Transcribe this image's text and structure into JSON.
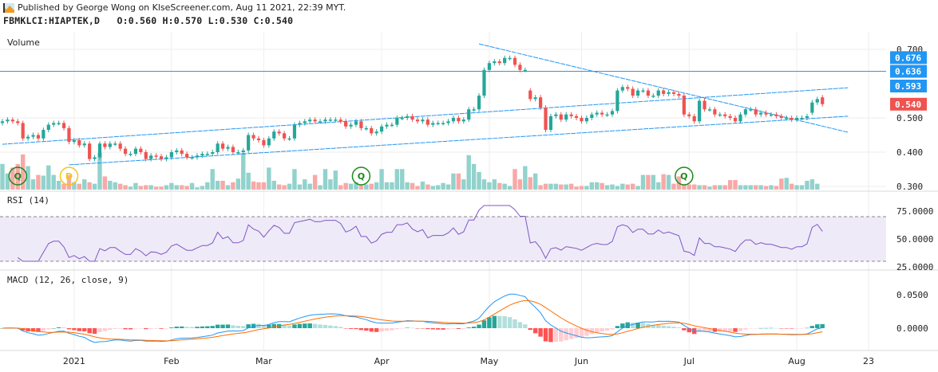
{
  "header": {
    "published": "Published by George Wong on KlseScreener.com, Aug 11 2021, 22:39 MYT.",
    "symbol_line": "FBMKLCI:HIAPTEK,D   O:0.560 H:0.570 L:0.530 C:0.540"
  },
  "colors": {
    "up": "#26a69a",
    "down": "#ef5350",
    "line": "#2196f3",
    "rsi": "#7e57c2",
    "signal": "#ff6d00",
    "event_q": "#1b8a1b",
    "event_d": "#f5c518"
  },
  "panes": {
    "volume_label": "Volume",
    "rsi_label": "RSI (14)",
    "macd_label": "MACD (12, 26, close, 9)"
  },
  "price_axis": {
    "ticks": [
      "0.700",
      "0.500",
      "0.400",
      "0.300"
    ],
    "tick_values": [
      0.7,
      0.5,
      0.4,
      0.3
    ],
    "badges": [
      {
        "text": "0.676",
        "value": 0.676,
        "color": "#2196f3"
      },
      {
        "text": "0.636",
        "value": 0.636,
        "color": "#2196f3"
      },
      {
        "text": "0.593",
        "value": 0.593,
        "color": "#2196f3"
      },
      {
        "text": "0.540",
        "value": 0.54,
        "color": "#ef5350"
      }
    ]
  },
  "rsi_axis": {
    "ticks": [
      "75.0000",
      "50.0000",
      "25.0000"
    ],
    "tick_values": [
      75,
      50,
      25
    ],
    "band": [
      30,
      70
    ]
  },
  "macd_axis": {
    "ticks": [
      "0.0500",
      "0.0000"
    ],
    "tick_values": [
      0.05,
      0
    ]
  },
  "time_axis": {
    "labels": [
      "2021",
      "Feb",
      "Mar",
      "Apr",
      "May",
      "Jun",
      "Jul",
      "Aug",
      "23"
    ],
    "bar_index": [
      14,
      33,
      51,
      74,
      95,
      113,
      134,
      155,
      169
    ]
  },
  "events": [
    {
      "label": "Q",
      "bar_index": 3,
      "type": "q"
    },
    {
      "label": "D",
      "bar_index": 13,
      "type": "d"
    },
    {
      "label": "Q",
      "bar_index": 70,
      "type": "q"
    },
    {
      "label": "Q",
      "bar_index": 133,
      "type": "q"
    }
  ],
  "drawings": {
    "horizontal_level": 0.636,
    "trendlines": [
      {
        "from": [
          0,
          0.423
        ],
        "to": [
          165,
          0.588
        ]
      },
      {
        "from": [
          13,
          0.363
        ],
        "to": [
          165,
          0.505
        ]
      },
      {
        "from": [
          93,
          0.716
        ],
        "to": [
          165,
          0.458
        ]
      }
    ]
  },
  "chart_data": {
    "type": "candlestick",
    "symbol": "FBMKLCI:HIAPTEK,D",
    "indicators": [
      "Volume",
      "RSI (14)",
      "MACD (12, 26, close, 9)"
    ],
    "open": [
      0.485,
      0.49,
      0.495,
      0.49,
      0.485,
      0.44,
      0.445,
      0.45,
      0.44,
      0.465,
      0.48,
      0.485,
      0.485,
      0.47,
      0.43,
      0.435,
      0.42,
      0.425,
      0.38,
      0.385,
      0.425,
      0.415,
      0.425,
      0.425,
      0.41,
      0.395,
      0.395,
      0.41,
      0.4,
      0.38,
      0.39,
      0.388,
      0.38,
      0.385,
      0.4,
      0.405,
      0.395,
      0.385,
      0.385,
      0.39,
      0.395,
      0.395,
      0.4,
      0.425,
      0.41,
      0.415,
      0.4,
      0.4,
      0.405,
      0.45,
      0.44,
      0.435,
      0.42,
      0.44,
      0.46,
      0.455,
      0.44,
      0.44,
      0.48,
      0.485,
      0.49,
      0.495,
      0.49,
      0.49,
      0.495,
      0.495,
      0.495,
      0.49,
      0.475,
      0.48,
      0.49,
      0.47,
      0.47,
      0.455,
      0.46,
      0.475,
      0.48,
      0.48,
      0.5,
      0.5,
      0.505,
      0.495,
      0.49,
      0.495,
      0.48,
      0.485,
      0.485,
      0.485,
      0.49,
      0.5,
      0.49,
      0.495,
      0.525,
      0.525,
      0.565,
      0.64,
      0.66,
      0.665,
      0.66,
      0.675,
      0.675,
      0.655,
      0.64,
      0.58,
      0.555,
      0.56,
      0.53,
      0.465,
      0.505,
      0.51,
      0.495,
      0.51,
      0.505,
      0.5,
      0.49,
      0.5,
      0.51,
      0.515,
      0.51,
      0.51,
      0.52,
      0.58,
      0.59,
      0.585,
      0.565,
      0.58,
      0.58,
      0.565,
      0.565,
      0.58,
      0.57,
      0.575,
      0.57,
      0.565,
      0.51,
      0.505,
      0.49,
      0.55,
      0.525,
      0.525,
      0.51,
      0.51,
      0.505,
      0.5,
      0.49,
      0.51,
      0.525,
      0.525,
      0.51,
      0.515,
      0.51,
      0.51,
      0.505,
      0.5,
      0.5,
      0.495,
      0.5,
      0.5,
      0.515,
      0.545,
      0.56
    ],
    "close": [
      0.49,
      0.495,
      0.49,
      0.485,
      0.44,
      0.445,
      0.45,
      0.44,
      0.465,
      0.48,
      0.485,
      0.485,
      0.47,
      0.43,
      0.435,
      0.42,
      0.425,
      0.38,
      0.385,
      0.425,
      0.415,
      0.425,
      0.425,
      0.41,
      0.395,
      0.395,
      0.41,
      0.4,
      0.38,
      0.39,
      0.388,
      0.38,
      0.385,
      0.4,
      0.405,
      0.395,
      0.385,
      0.385,
      0.39,
      0.395,
      0.395,
      0.4,
      0.425,
      0.41,
      0.415,
      0.4,
      0.4,
      0.405,
      0.45,
      0.44,
      0.435,
      0.42,
      0.44,
      0.46,
      0.455,
      0.44,
      0.44,
      0.48,
      0.485,
      0.49,
      0.495,
      0.49,
      0.49,
      0.495,
      0.495,
      0.495,
      0.49,
      0.475,
      0.48,
      0.49,
      0.47,
      0.47,
      0.455,
      0.46,
      0.475,
      0.48,
      0.48,
      0.5,
      0.5,
      0.505,
      0.495,
      0.49,
      0.495,
      0.48,
      0.485,
      0.485,
      0.485,
      0.49,
      0.5,
      0.49,
      0.495,
      0.525,
      0.525,
      0.565,
      0.64,
      0.66,
      0.665,
      0.66,
      0.675,
      0.675,
      0.655,
      0.64,
      0.64,
      0.555,
      0.56,
      0.53,
      0.465,
      0.505,
      0.51,
      0.495,
      0.51,
      0.505,
      0.5,
      0.49,
      0.5,
      0.51,
      0.515,
      0.51,
      0.51,
      0.52,
      0.58,
      0.59,
      0.585,
      0.565,
      0.58,
      0.58,
      0.565,
      0.565,
      0.58,
      0.57,
      0.575,
      0.57,
      0.565,
      0.51,
      0.505,
      0.49,
      0.55,
      0.525,
      0.525,
      0.51,
      0.51,
      0.505,
      0.5,
      0.49,
      0.51,
      0.525,
      0.525,
      0.51,
      0.515,
      0.51,
      0.51,
      0.505,
      0.5,
      0.5,
      0.495,
      0.5,
      0.5,
      0.505,
      0.545,
      0.555,
      0.54
    ],
    "volume_relative": [
      35,
      22,
      30,
      35,
      48,
      32,
      14,
      20,
      19,
      33,
      20,
      12,
      8,
      20,
      10,
      8,
      14,
      10,
      8,
      50,
      18,
      12,
      10,
      8,
      6,
      4,
      9,
      5,
      6,
      6,
      4,
      4,
      6,
      9,
      6,
      6,
      5,
      9,
      3,
      5,
      10,
      28,
      12,
      12,
      6,
      10,
      15,
      50,
      23,
      11,
      10,
      10,
      30,
      12,
      7,
      6,
      8,
      28,
      7,
      14,
      8,
      20,
      6,
      28,
      14,
      26,
      6,
      9,
      8,
      10,
      6,
      7,
      8,
      10,
      28,
      10,
      10,
      28,
      28,
      10,
      9,
      5,
      11,
      7,
      5,
      6,
      9,
      7,
      22,
      22,
      14,
      47,
      35,
      24,
      14,
      10,
      14,
      9,
      8,
      5,
      28,
      14,
      32,
      17,
      22,
      6,
      8,
      8,
      8,
      7,
      7,
      8,
      4,
      5,
      5,
      10,
      10,
      9,
      6,
      7,
      5,
      8,
      7,
      8,
      5,
      20,
      20,
      20,
      10,
      21,
      20,
      8,
      18,
      6,
      7,
      7,
      6,
      6,
      4,
      6,
      6,
      6,
      13,
      13,
      6,
      6,
      6,
      6,
      6,
      5,
      6,
      5,
      15,
      16,
      8,
      6,
      6,
      12,
      14,
      8
    ],
    "price_range": [
      0.3,
      0.7
    ],
    "rsi_range": [
      25,
      75
    ],
    "grid": true
  }
}
